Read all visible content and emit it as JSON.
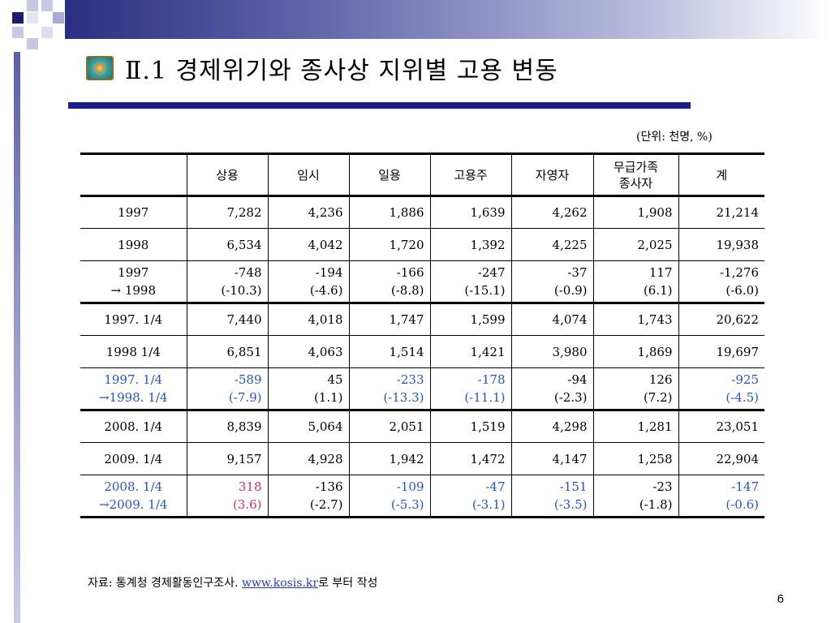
{
  "title": "Ⅱ.1 경제위기와 종사상 지위별 고용 변동",
  "unit": "(단위: 천명, %)",
  "headers": [
    "",
    "상용",
    "임시",
    "일용",
    "고용주",
    "자영자",
    "무급가족\n종사자",
    "계"
  ],
  "rows": [
    {
      "label": "1997",
      "cells": [
        "7,282",
        "4,236",
        "1,886",
        "1,639",
        "4,262",
        "1,908",
        "21,214"
      ]
    },
    {
      "label": "1998",
      "cells": [
        "6,534",
        "4,042",
        "1,720",
        "1,392",
        "4,225",
        "2,025",
        "19,938"
      ]
    },
    {
      "label": "1997\n→ 1998",
      "cells": [
        "-748\n(-10.3)",
        "-194\n(-4.6)",
        "-166\n(-8.8)",
        "-247\n(-15.1)",
        "-37\n(-0.9)",
        "117\n(6.1)",
        "-1,276\n(-6.0)"
      ]
    },
    {
      "label": "1997. 1/4",
      "cells": [
        "7,440",
        "4,018",
        "1,747",
        "1,599",
        "4,074",
        "1,743",
        "20,622"
      ]
    },
    {
      "label": "1998 1/4",
      "cells": [
        "6,851",
        "4,063",
        "1,514",
        "1,421",
        "3,980",
        "1,869",
        "19,697"
      ]
    },
    {
      "label": "1997. 1/4\n→1998. 1/4",
      "cells": [
        "-589\n(-7.9)",
        "45\n(1.1)",
        "-233\n(-13.3)",
        "-178\n(-11.1)",
        "-94\n(-2.3)",
        "126\n(7.2)",
        "-925\n(-4.5)"
      ]
    },
    {
      "label": "2008. 1/4",
      "cells": [
        "8,839",
        "5,064",
        "2,051",
        "1,519",
        "4,298",
        "1,281",
        "23,051"
      ]
    },
    {
      "label": "2009. 1/4",
      "cells": [
        "9,157",
        "4,928",
        "1,942",
        "1,472",
        "4,147",
        "1,258",
        "22,904"
      ]
    },
    {
      "label": "2008. 1/4\n→2009. 1/4",
      "cells": [
        "318\n(3.6)",
        "-136\n(-2.7)",
        "-109\n(-5.3)",
        "-47\n(-3.1)",
        "-151\n(-3.5)",
        "-23\n(-1.8)",
        "-147\n(-0.6)"
      ]
    }
  ],
  "source_prefix": "자료: 통계청 경제활동인구조사. ",
  "source_link": "www.kosis.kr",
  "source_suffix": "로 부터 작성",
  "page_number": "6",
  "colors": {
    "accent_blue": "#2255cc",
    "accent_red": "#d62a6a",
    "title_bar": "#1c1d8c"
  }
}
